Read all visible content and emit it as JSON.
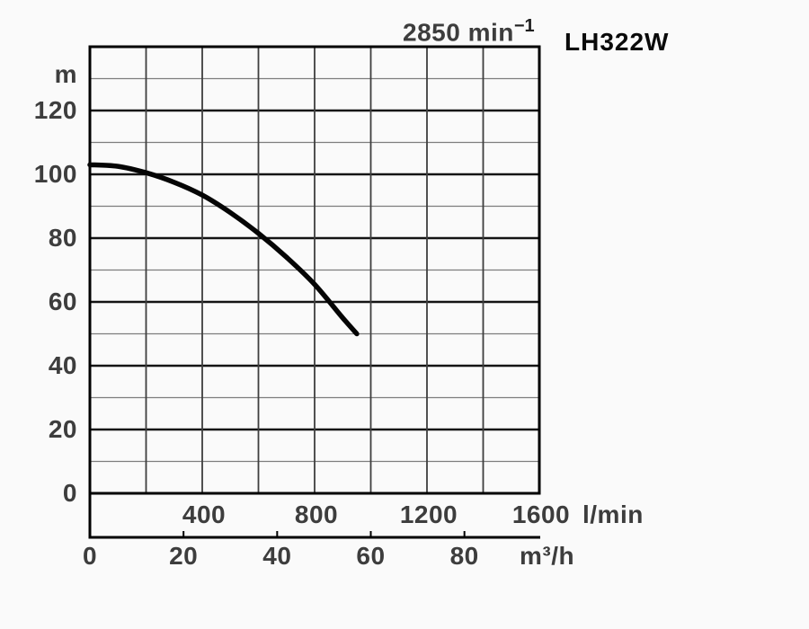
{
  "header": {
    "speed": "2850 min",
    "speed_exponent": "−1",
    "model": "LH322W"
  },
  "chart_data": {
    "type": "line",
    "title": "2850 min⁻¹",
    "model": "LH322W",
    "grid": true,
    "legend_position": "none",
    "y_axis": {
      "label": "m",
      "range": [
        0,
        140
      ],
      "gridline_step": 10,
      "labeled_step": 20,
      "ticks": [
        0,
        20,
        40,
        60,
        80,
        100,
        120
      ]
    },
    "x_axis_primary": {
      "label": "l/min",
      "range": [
        0,
        1600
      ],
      "gridline_step": 200,
      "ticks": [
        400,
        800,
        1200,
        1600
      ]
    },
    "x_axis_secondary": {
      "label": "m³/h",
      "range": [
        0,
        96
      ],
      "ticks": [
        0,
        20,
        40,
        60,
        80
      ]
    },
    "series": [
      {
        "name": "LH322W head-flow curve",
        "x_unit": "l/min",
        "y_unit": "m",
        "points": [
          [
            0,
            103
          ],
          [
            100,
            102.5
          ],
          [
            200,
            100.5
          ],
          [
            300,
            97.5
          ],
          [
            400,
            93.5
          ],
          [
            500,
            88
          ],
          [
            600,
            81.5
          ],
          [
            700,
            74
          ],
          [
            800,
            65.5
          ],
          [
            900,
            55
          ],
          [
            950,
            50
          ]
        ]
      }
    ],
    "colors": {
      "curve": "#050505",
      "grid_minor": "#7d7d7d",
      "grid_major": "#141414",
      "grid_vertical": "#3e3e3e",
      "border": "#000000",
      "axis_text": "#3d3d3d",
      "model_text": "#0a0a0a",
      "background": "#fafafa"
    }
  }
}
